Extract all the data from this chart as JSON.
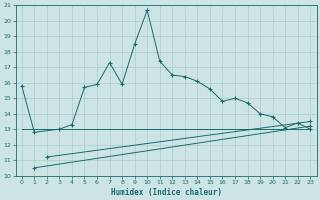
{
  "xlabel": "Humidex (Indice chaleur)",
  "bg_color": "#cde4e4",
  "grid_color": "#aacece",
  "line_color": "#1a6b6b",
  "xlim": [
    -0.5,
    23.5
  ],
  "ylim": [
    10,
    21
  ],
  "xticks": [
    0,
    1,
    2,
    3,
    4,
    5,
    6,
    7,
    8,
    9,
    10,
    11,
    12,
    13,
    14,
    15,
    16,
    17,
    18,
    19,
    20,
    21,
    22,
    23
  ],
  "yticks": [
    10,
    11,
    12,
    13,
    14,
    15,
    16,
    17,
    18,
    19,
    20,
    21
  ],
  "line1_x": [
    0,
    1,
    3,
    4,
    5,
    6,
    7,
    8,
    9,
    10,
    11,
    12,
    13,
    14,
    15,
    16,
    17,
    18,
    19,
    20,
    21,
    22,
    23
  ],
  "line1_y": [
    15.8,
    12.8,
    13.0,
    13.3,
    15.7,
    15.9,
    17.3,
    15.9,
    18.5,
    20.7,
    17.4,
    16.5,
    16.4,
    16.1,
    15.6,
    14.8,
    15.0,
    14.7,
    14.0,
    13.8,
    13.1,
    13.4,
    13.0
  ],
  "line2_x": [
    0,
    1,
    3,
    23
  ],
  "line2_y": [
    13.0,
    13.0,
    13.0,
    13.0
  ],
  "line3_x": [
    1,
    23
  ],
  "line3_y": [
    10.5,
    13.2
  ],
  "line4_x": [
    2,
    23
  ],
  "line4_y": [
    11.2,
    13.5
  ]
}
